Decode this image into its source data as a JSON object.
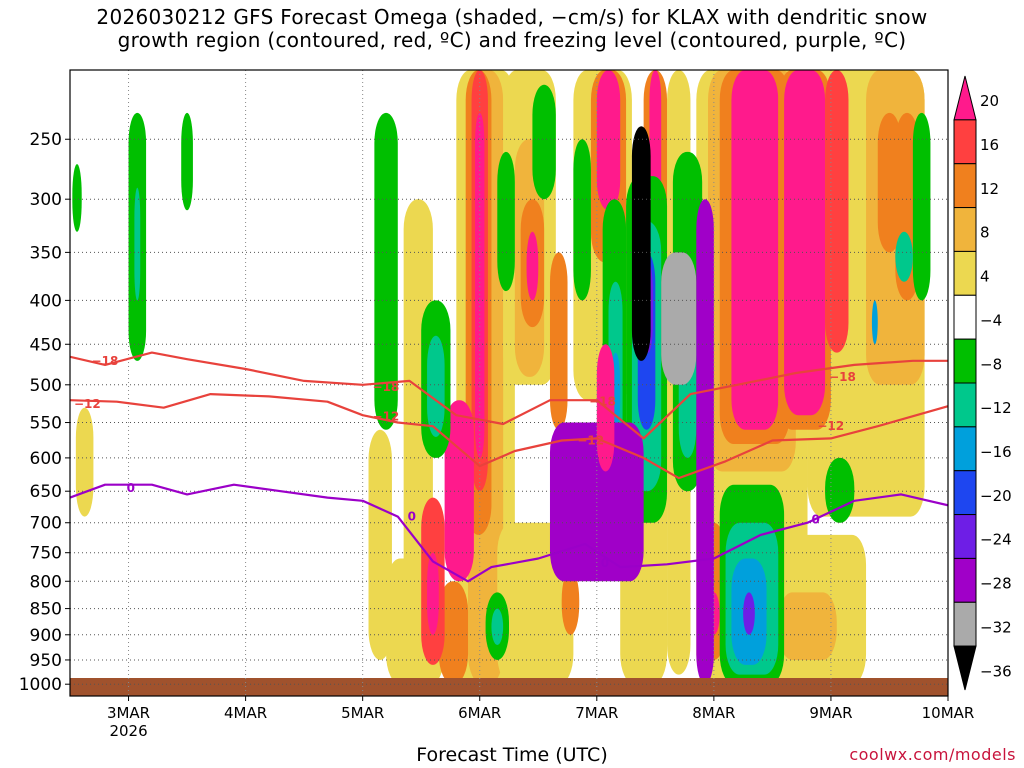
{
  "title": {
    "line1": "2026030212 GFS Forecast Omega (shaded, −cm/s) for KLAX with dendritic snow",
    "line2": "growth region (contoured, red, ºC) and freezing level (contoured, purple, ºC)"
  },
  "credit": "coolwx.com/models",
  "chart_data": {
    "type": "heatmap",
    "xlabel": "Forecast Time (UTC)",
    "ylabel": "",
    "x_ticks": [
      {
        "t": 0.5,
        "label": "3MAR",
        "sublabel": "2026"
      },
      {
        "t": 1.5,
        "label": "4MAR",
        "sublabel": ""
      },
      {
        "t": 2.5,
        "label": "5MAR",
        "sublabel": ""
      },
      {
        "t": 3.5,
        "label": "6MAR",
        "sublabel": ""
      },
      {
        "t": 4.5,
        "label": "7MAR",
        "sublabel": ""
      },
      {
        "t": 5.5,
        "label": "8MAR",
        "sublabel": ""
      },
      {
        "t": 6.5,
        "label": "9MAR",
        "sublabel": ""
      },
      {
        "t": 7.5,
        "label": "10MAR",
        "sublabel": ""
      }
    ],
    "x_range_days": [
      0,
      7.5
    ],
    "y_levels_hpa": [
      250,
      300,
      350,
      400,
      450,
      500,
      550,
      600,
      650,
      700,
      750,
      800,
      850,
      900,
      950,
      1000
    ],
    "y_range_hpa": [
      200,
      1025
    ],
    "colorbar": {
      "labels": [
        "20",
        "16",
        "12",
        "8",
        "4",
        "−4",
        "−8",
        "−12",
        "−16",
        "−20",
        "−24",
        "−28",
        "−32",
        "−36"
      ],
      "colors": [
        "#ff1a8c",
        "#ff4040",
        "#f0801e",
        "#f0b43c",
        "#ecd850",
        "#ffffff",
        "#00bf00",
        "#00c88c",
        "#00a0dc",
        "#1e46f0",
        "#6e1ee6",
        "#a000c8",
        "#aaaaaa",
        "#000000"
      ]
    },
    "shading_colors": {
      "w4": "#ecd850",
      "w8": "#f0b43c",
      "w12": "#f0801e",
      "w16": "#ff4040",
      "w20": "#ff1a8c",
      "c8": "#00bf00",
      "c12": "#00c88c",
      "c16": "#00a0dc",
      "c20": "#1e46f0",
      "c24": "#6e1ee6",
      "c28": "#a000c8",
      "c32": "#aaaaaa",
      "c36": "#000000"
    },
    "contours": {
      "dgz_top": {
        "label": "−18",
        "color": "#e8423c",
        "t": [
          0,
          0.3,
          0.7,
          1.0,
          1.5,
          2.0,
          2.5,
          2.9,
          3.3,
          3.7,
          4.1,
          4.5,
          4.9,
          5.3,
          5.7,
          6.2,
          6.7,
          7.2,
          7.5
        ],
        "p": [
          465,
          475,
          460,
          468,
          480,
          495,
          500,
          495,
          540,
          552,
          520,
          520,
          572,
          512,
          500,
          485,
          475,
          470,
          470
        ]
      },
      "dgz_bot": {
        "label": "−12",
        "color": "#e8423c",
        "t": [
          0,
          0.4,
          0.8,
          1.2,
          1.7,
          2.2,
          2.5,
          2.8,
          3.1,
          3.5,
          3.8,
          4.2,
          4.5,
          4.9,
          5.2,
          5.6,
          6.0,
          6.5,
          6.9,
          7.5
        ],
        "p": [
          520,
          522,
          530,
          512,
          515,
          522,
          540,
          550,
          555,
          612,
          590,
          575,
          572,
          600,
          630,
          605,
          575,
          572,
          555,
          528
        ]
      },
      "freezing": {
        "label": "0",
        "color": "#9b00c8",
        "t": [
          0,
          0.3,
          0.7,
          1.0,
          1.4,
          1.8,
          2.2,
          2.5,
          2.8,
          3.1,
          3.4,
          3.6,
          4.0,
          4.4,
          4.7,
          5.1,
          5.5,
          5.9,
          6.3,
          6.7,
          7.1,
          7.5
        ],
        "p": [
          660,
          640,
          640,
          655,
          640,
          650,
          660,
          665,
          690,
          765,
          800,
          775,
          760,
          735,
          775,
          770,
          760,
          720,
          700,
          665,
          655,
          672
        ]
      }
    },
    "contour_labels": [
      {
        "text": "−18",
        "t": 0.15,
        "p": 470
      },
      {
        "text": "−12",
        "t": 0.0,
        "p": 525
      },
      {
        "text": "0",
        "t": 0.45,
        "p": 645
      },
      {
        "text": "−18",
        "t": 2.55,
        "p": 503
      },
      {
        "text": "−12",
        "t": 2.55,
        "p": 542
      },
      {
        "text": "0",
        "t": 2.85,
        "p": 690
      },
      {
        "text": "−18",
        "t": 4.4,
        "p": 522
      },
      {
        "text": "−12",
        "t": 4.3,
        "p": 575
      },
      {
        "text": "0",
        "t": 4.5,
        "p": 768
      },
      {
        "text": "−18",
        "t": 6.45,
        "p": 490
      },
      {
        "text": "−12",
        "t": 6.35,
        "p": 555
      },
      {
        "text": "0",
        "t": 6.3,
        "p": 695
      }
    ],
    "regions": [
      {
        "v": "w4",
        "t": [
          0.05,
          0.2
        ],
        "p": [
          530,
          690
        ]
      },
      {
        "v": "w4",
        "t": [
          2.55,
          2.75
        ],
        "p": [
          560,
          950
        ]
      },
      {
        "v": "w4",
        "t": [
          2.85,
          3.1
        ],
        "p": [
          300,
          1000
        ]
      },
      {
        "v": "w4",
        "t": [
          3.3,
          3.8
        ],
        "p": [
          200,
          1000
        ]
      },
      {
        "v": "w8",
        "t": [
          3.4,
          3.7
        ],
        "p": [
          200,
          1000
        ]
      },
      {
        "v": "w4",
        "t": [
          3.7,
          4.15
        ],
        "p": [
          200,
          500
        ]
      },
      {
        "v": "w8",
        "t": [
          3.8,
          4.05
        ],
        "p": [
          250,
          490
        ]
      },
      {
        "v": "w4",
        "t": [
          4.3,
          4.8
        ],
        "p": [
          200,
          520
        ]
      },
      {
        "v": "w4",
        "t": [
          5.1,
          5.3
        ],
        "p": [
          200,
          980
        ]
      },
      {
        "v": "w4",
        "t": [
          5.35,
          6.3
        ],
        "p": [
          200,
          1000
        ]
      },
      {
        "v": "w8",
        "t": [
          5.45,
          6.2
        ],
        "p": [
          200,
          620
        ]
      },
      {
        "v": "w4",
        "t": [
          6.3,
          7.3
        ],
        "p": [
          200,
          690
        ]
      },
      {
        "v": "w8",
        "t": [
          6.8,
          7.3
        ],
        "p": [
          200,
          500
        ]
      },
      {
        "v": "w12",
        "t": [
          7.05,
          7.25
        ],
        "p": [
          230,
          400
        ]
      },
      {
        "v": "w4",
        "t": [
          2.7,
          3.2
        ],
        "p": [
          760,
          1000
        ]
      },
      {
        "v": "w4",
        "t": [
          3.65,
          4.3
        ],
        "p": [
          700,
          1000
        ]
      },
      {
        "v": "w4",
        "t": [
          4.7,
          5.1
        ],
        "p": [
          540,
          1000
        ]
      },
      {
        "v": "w4",
        "t": [
          5.9,
          6.8
        ],
        "p": [
          720,
          1000
        ]
      },
      {
        "v": "w8",
        "t": [
          6.05,
          6.55
        ],
        "p": [
          820,
          950
        ]
      },
      {
        "v": "w12",
        "t": [
          3.38,
          3.6
        ],
        "p": [
          200,
          720
        ]
      },
      {
        "v": "w16",
        "t": [
          3.43,
          3.57
        ],
        "p": [
          200,
          650
        ]
      },
      {
        "v": "w20",
        "t": [
          3.46,
          3.54
        ],
        "p": [
          230,
          600
        ]
      },
      {
        "v": "w12",
        "t": [
          3.15,
          3.4
        ],
        "p": [
          800,
          1000
        ]
      },
      {
        "v": "w16",
        "t": [
          3.0,
          3.2
        ],
        "p": [
          660,
          960
        ]
      },
      {
        "v": "w20",
        "t": [
          3.05,
          3.15
        ],
        "p": [
          750,
          900
        ]
      },
      {
        "v": "w20",
        "t": [
          3.2,
          3.45
        ],
        "p": [
          520,
          800
        ]
      },
      {
        "v": "w12",
        "t": [
          3.85,
          4.05
        ],
        "p": [
          300,
          430
        ]
      },
      {
        "v": "w20",
        "t": [
          3.9,
          4.0
        ],
        "p": [
          330,
          400
        ]
      },
      {
        "v": "w12",
        "t": [
          4.1,
          4.25
        ],
        "p": [
          350,
          560
        ]
      },
      {
        "v": "w12",
        "t": [
          4.45,
          4.75
        ],
        "p": [
          200,
          360
        ]
      },
      {
        "v": "w20",
        "t": [
          4.5,
          4.7
        ],
        "p": [
          200,
          310
        ]
      },
      {
        "v": "w12",
        "t": [
          5.55,
          6.15
        ],
        "p": [
          200,
          580
        ]
      },
      {
        "v": "w20",
        "t": [
          5.65,
          6.05
        ],
        "p": [
          200,
          560
        ]
      },
      {
        "v": "w12",
        "t": [
          6.05,
          6.5
        ],
        "p": [
          200,
          560
        ]
      },
      {
        "v": "w20",
        "t": [
          6.1,
          6.45
        ],
        "p": [
          200,
          540
        ]
      },
      {
        "v": "w12",
        "t": [
          6.9,
          7.1
        ],
        "p": [
          230,
          350
        ]
      },
      {
        "v": "w16",
        "t": [
          6.45,
          6.65
        ],
        "p": [
          200,
          460
        ]
      },
      {
        "v": "w12",
        "t": [
          4.9,
          5.1
        ],
        "p": [
          200,
          380
        ]
      },
      {
        "v": "w20",
        "t": [
          4.95,
          5.05
        ],
        "p": [
          200,
          340
        ]
      },
      {
        "v": "w12",
        "t": [
          5.4,
          5.6
        ],
        "p": [
          700,
          950
        ]
      },
      {
        "v": "w20",
        "t": [
          5.45,
          5.55
        ],
        "p": [
          820,
          900
        ]
      },
      {
        "v": "w12",
        "t": [
          4.2,
          4.35
        ],
        "p": [
          780,
          900
        ]
      },
      {
        "v": "c8",
        "t": [
          0.5,
          0.65
        ],
        "p": [
          230,
          470
        ]
      },
      {
        "v": "c12",
        "t": [
          0.55,
          0.6
        ],
        "p": [
          290,
          400
        ]
      },
      {
        "v": "c8",
        "t": [
          0.02,
          0.1
        ],
        "p": [
          270,
          330
        ]
      },
      {
        "v": "c8",
        "t": [
          0.95,
          1.05
        ],
        "p": [
          230,
          310
        ]
      },
      {
        "v": "c8",
        "t": [
          2.6,
          2.8
        ],
        "p": [
          230,
          560
        ]
      },
      {
        "v": "c8",
        "t": [
          3.65,
          3.8
        ],
        "p": [
          260,
          390
        ]
      },
      {
        "v": "c8",
        "t": [
          3.95,
          4.15
        ],
        "p": [
          210,
          300
        ]
      },
      {
        "v": "c8",
        "t": [
          4.3,
          4.45
        ],
        "p": [
          250,
          400
        ]
      },
      {
        "v": "c8",
        "t": [
          4.55,
          4.75
        ],
        "p": [
          300,
          650
        ]
      },
      {
        "v": "c12",
        "t": [
          4.6,
          4.72
        ],
        "p": [
          380,
          620
        ]
      },
      {
        "v": "c16",
        "t": [
          4.62,
          4.7
        ],
        "p": [
          460,
          560
        ]
      },
      {
        "v": "c8",
        "t": [
          4.75,
          5.1
        ],
        "p": [
          280,
          700
        ]
      },
      {
        "v": "c12",
        "t": [
          4.8,
          5.05
        ],
        "p": [
          320,
          650
        ]
      },
      {
        "v": "c20",
        "t": [
          4.85,
          5.0
        ],
        "p": [
          350,
          560
        ]
      },
      {
        "v": "c24",
        "t": [
          4.9,
          4.98
        ],
        "p": [
          360,
          460
        ]
      },
      {
        "v": "c8",
        "t": [
          5.15,
          5.4
        ],
        "p": [
          260,
          650
        ]
      },
      {
        "v": "c12",
        "t": [
          5.2,
          5.35
        ],
        "p": [
          400,
          600
        ]
      },
      {
        "v": "c8",
        "t": [
          3.0,
          3.25
        ],
        "p": [
          400,
          600
        ]
      },
      {
        "v": "c12",
        "t": [
          3.05,
          3.2
        ],
        "p": [
          440,
          570
        ]
      },
      {
        "v": "c8",
        "t": [
          3.55,
          3.75
        ],
        "p": [
          820,
          950
        ]
      },
      {
        "v": "c12",
        "t": [
          3.6,
          3.7
        ],
        "p": [
          850,
          920
        ]
      },
      {
        "v": "c8",
        "t": [
          5.55,
          6.1
        ],
        "p": [
          640,
          1000
        ]
      },
      {
        "v": "c12",
        "t": [
          5.6,
          6.05
        ],
        "p": [
          700,
          980
        ]
      },
      {
        "v": "c16",
        "t": [
          5.65,
          5.95
        ],
        "p": [
          760,
          960
        ]
      },
      {
        "v": "c24",
        "t": [
          5.75,
          5.85
        ],
        "p": [
          820,
          900
        ]
      },
      {
        "v": "c8",
        "t": [
          6.45,
          6.7
        ],
        "p": [
          600,
          700
        ]
      },
      {
        "v": "c8",
        "t": [
          7.2,
          7.35
        ],
        "p": [
          230,
          400
        ]
      },
      {
        "v": "c12",
        "t": [
          7.05,
          7.2
        ],
        "p": [
          330,
          380
        ]
      },
      {
        "v": "c16",
        "t": [
          6.85,
          6.9
        ],
        "p": [
          400,
          450
        ]
      },
      {
        "v": "c28",
        "t": [
          4.1,
          4.9
        ],
        "p": [
          550,
          800
        ]
      },
      {
        "v": "c32",
        "t": [
          5.05,
          5.35
        ],
        "p": [
          350,
          500
        ]
      },
      {
        "v": "c36",
        "t": [
          4.8,
          4.96
        ],
        "p": [
          240,
          470
        ]
      },
      {
        "v": "c36",
        "t": [
          5.4,
          5.46
        ],
        "p": [
          380,
          460
        ]
      },
      {
        "v": "c32",
        "t": [
          5.38,
          5.47
        ],
        "p": [
          320,
          370
        ]
      },
      {
        "v": "c28",
        "t": [
          5.35,
          5.5
        ],
        "p": [
          300,
          1000
        ]
      },
      {
        "v": "w20",
        "t": [
          4.5,
          4.65
        ],
        "p": [
          450,
          620
        ]
      }
    ]
  }
}
